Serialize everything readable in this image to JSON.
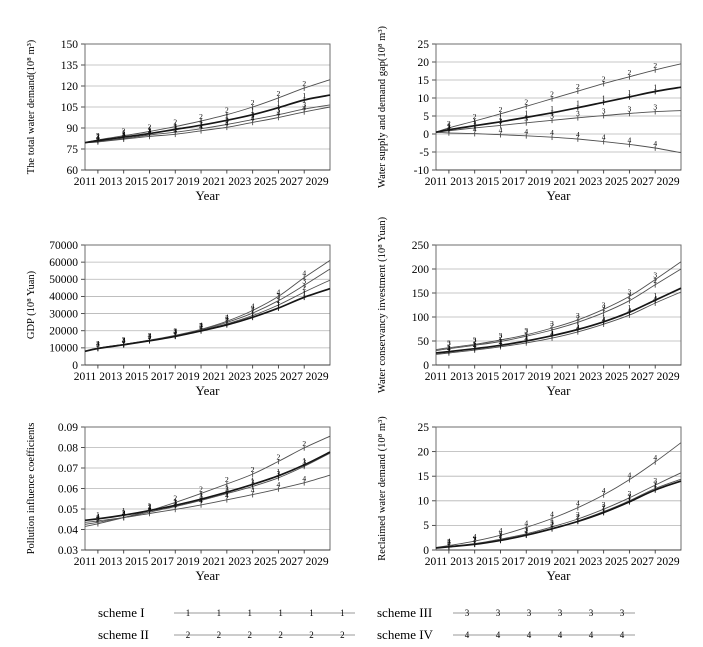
{
  "page": {
    "background": "#ffffff"
  },
  "colors": {
    "line": "#4f4f4f",
    "line_bold": "#161616",
    "grid": "#b4b4b4",
    "axis": "#6e6e6e",
    "axis_dark": "#3c3c3c",
    "marker_text": "#1d1d1d",
    "legend_line": "#9a9a9a"
  },
  "legend": {
    "items": [
      {
        "label": "scheme I",
        "marker": "1"
      },
      {
        "label": "scheme II",
        "marker": "2"
      },
      {
        "label": "scheme III",
        "marker": "3"
      },
      {
        "label": "scheme IV",
        "marker": "4"
      }
    ]
  },
  "chart_data": [
    {
      "id": "total-water-demand",
      "type": "line",
      "title": "",
      "xlabel": "Year",
      "ylabel": "The total water demand(10⁸ m³)",
      "xlim": [
        2011,
        2030
      ],
      "ylim": [
        60,
        150
      ],
      "ytick_step": 15,
      "ydecimals": 0,
      "grid": true,
      "xtick_labels": [
        "2011",
        "2013",
        "2015",
        "2017",
        "2019",
        "2021",
        "2023",
        "2025",
        "2027",
        "2029"
      ],
      "x": [
        2011,
        2012,
        2014,
        2016,
        2018,
        2020,
        2022,
        2024,
        2026,
        2028,
        2030
      ],
      "series": [
        {
          "name": "scheme I",
          "marker": "1",
          "bold": true,
          "values": [
            79.5,
            81,
            83.5,
            86,
            89,
            92,
            95.5,
            99.5,
            104.5,
            110,
            113.5
          ]
        },
        {
          "name": "scheme II",
          "marker": "2",
          "bold": false,
          "values": [
            79.5,
            81.5,
            84.5,
            87.5,
            91,
            95,
            99.5,
            105,
            111.5,
            118.5,
            124.5
          ]
        },
        {
          "name": "scheme III",
          "marker": "3",
          "bold": false,
          "values": [
            79.5,
            80.5,
            82.5,
            85,
            87,
            89.5,
            92.5,
            96,
            99.5,
            103.5,
            106.5
          ]
        },
        {
          "name": "scheme IV",
          "marker": "4",
          "bold": false,
          "values": [
            79.5,
            80,
            82,
            84,
            85.5,
            88,
            90.5,
            94,
            97.5,
            101.5,
            105
          ]
        }
      ]
    },
    {
      "id": "water-supply-demand-gap",
      "type": "line",
      "title": "",
      "xlabel": "Year",
      "ylabel": "Water supply and demand gap(10⁸ m³)",
      "xlim": [
        2011,
        2030
      ],
      "ylim": [
        -10,
        25
      ],
      "ytick_step": 5,
      "ydecimals": 0,
      "grid": true,
      "xtick_labels": [
        "2011",
        "2013",
        "2015",
        "2017",
        "2019",
        "2021",
        "2023",
        "2025",
        "2027",
        "2029"
      ],
      "x": [
        2011,
        2012,
        2014,
        2016,
        2018,
        2020,
        2022,
        2024,
        2026,
        2028,
        2030
      ],
      "series": [
        {
          "name": "scheme I",
          "marker": "1",
          "bold": true,
          "values": [
            0.5,
            1.2,
            2.3,
            3.4,
            4.6,
            5.9,
            7.3,
            8.8,
            10.3,
            11.8,
            13
          ]
        },
        {
          "name": "scheme II",
          "marker": "2",
          "bold": false,
          "values": [
            0.5,
            1.7,
            3.6,
            5.6,
            7.7,
            9.8,
            11.9,
            14,
            15.9,
            17.8,
            19.5
          ]
        },
        {
          "name": "scheme III",
          "marker": "3",
          "bold": false,
          "values": [
            0.5,
            0.9,
            1.7,
            2.4,
            3.1,
            3.8,
            4.5,
            5.1,
            5.7,
            6.2,
            6.5
          ]
        },
        {
          "name": "scheme IV",
          "marker": "4",
          "bold": false,
          "values": [
            0.5,
            0.3,
            0.1,
            -0.2,
            -0.5,
            -0.9,
            -1.4,
            -2.1,
            -2.9,
            -3.9,
            -5.2
          ]
        }
      ]
    },
    {
      "id": "gdp",
      "type": "line",
      "title": "",
      "xlabel": "Year",
      "ylabel": "GDP (10⁸ Yuan)",
      "xlim": [
        2011,
        2030
      ],
      "ylim": [
        0,
        70000
      ],
      "ytick_step": 10000,
      "ydecimals": 0,
      "grid": true,
      "xtick_labels": [
        "2011",
        "2013",
        "2015",
        "2017",
        "2019",
        "2021",
        "2023",
        "2025",
        "2027",
        "2029"
      ],
      "x": [
        2011,
        2012,
        2014,
        2016,
        2018,
        2020,
        2022,
        2024,
        2026,
        2028,
        2030
      ],
      "series": [
        {
          "name": "scheme I",
          "marker": "1",
          "bold": true,
          "values": [
            8000,
            9650,
            11800,
            14100,
            16700,
            19900,
            23400,
            27800,
            33200,
            39500,
            44500
          ]
        },
        {
          "name": "scheme II",
          "marker": "2",
          "bold": false,
          "values": [
            8000,
            9700,
            11900,
            14200,
            16900,
            20200,
            24000,
            28800,
            35000,
            42500,
            49500
          ]
        },
        {
          "name": "scheme III",
          "marker": "3",
          "bold": false,
          "values": [
            8000,
            9750,
            12000,
            14300,
            17100,
            20500,
            24800,
            30300,
            37500,
            46500,
            56000
          ]
        },
        {
          "name": "scheme IV",
          "marker": "4",
          "bold": false,
          "values": [
            8000,
            9800,
            12100,
            14500,
            17300,
            20800,
            25500,
            31800,
            40000,
            51000,
            61000
          ]
        }
      ]
    },
    {
      "id": "water-conservancy-investment",
      "type": "line",
      "title": "",
      "xlabel": "Year",
      "ylabel": "Water conservancy investment (10⁸ Yuan)",
      "xlim": [
        2011,
        2030
      ],
      "ylim": [
        0,
        250
      ],
      "ytick_step": 50,
      "ydecimals": 0,
      "grid": true,
      "xtick_labels": [
        "2011",
        "2013",
        "2015",
        "2017",
        "2019",
        "2021",
        "2023",
        "2025",
        "2027",
        "2029"
      ],
      "x": [
        2011,
        2012,
        2014,
        2016,
        2018,
        2020,
        2022,
        2024,
        2026,
        2028,
        2030
      ],
      "series": [
        {
          "name": "scheme I",
          "marker": "1",
          "bold": true,
          "values": [
            25,
            28,
            34,
            41,
            50,
            61,
            74,
            90,
            110,
            135,
            160
          ]
        },
        {
          "name": "scheme II",
          "marker": "2",
          "bold": false,
          "values": [
            30,
            34,
            41,
            49,
            60,
            73,
            89,
            109,
            134,
            167,
            200
          ]
        },
        {
          "name": "scheme III",
          "marker": "3",
          "bold": false,
          "values": [
            32,
            36,
            43,
            52,
            63,
            77,
            94,
            116,
            143,
            178,
            215
          ]
        },
        {
          "name": "scheme IV",
          "marker": "4",
          "bold": false,
          "values": [
            22,
            25,
            31,
            38,
            46,
            56,
            69,
            85,
            104,
            129,
            152
          ]
        }
      ]
    },
    {
      "id": "pollution-influence-coefficients",
      "type": "line",
      "title": "",
      "xlabel": "Year",
      "ylabel": "Pollution influence coefficients",
      "xlim": [
        2011,
        2030
      ],
      "ylim": [
        0.03,
        0.09
      ],
      "ytick_step": 0.01,
      "ydecimals": 2,
      "grid": true,
      "xtick_labels": [
        "2011",
        "2013",
        "2015",
        "2017",
        "2019",
        "2021",
        "2023",
        "2025",
        "2027",
        "2029"
      ],
      "x": [
        2011,
        2012,
        2014,
        2016,
        2018,
        2020,
        2022,
        2024,
        2026,
        2028,
        2030
      ],
      "series": [
        {
          "name": "scheme I",
          "marker": "1",
          "bold": true,
          "values": [
            0.0445,
            0.0452,
            0.047,
            0.0492,
            0.0518,
            0.0548,
            0.0582,
            0.062,
            0.0662,
            0.0715,
            0.0778
          ]
        },
        {
          "name": "scheme II",
          "marker": "2",
          "bold": false,
          "values": [
            0.0415,
            0.0428,
            0.0458,
            0.0492,
            0.0532,
            0.0576,
            0.0622,
            0.067,
            0.0732,
            0.0798,
            0.0855
          ]
        },
        {
          "name": "scheme III",
          "marker": "3",
          "bold": false,
          "values": [
            0.0425,
            0.0435,
            0.0458,
            0.0485,
            0.0512,
            0.0542,
            0.0575,
            0.061,
            0.0652,
            0.0708,
            0.0772
          ]
        },
        {
          "name": "scheme IV",
          "marker": "4",
          "bold": false,
          "values": [
            0.0435,
            0.0442,
            0.0458,
            0.0478,
            0.0498,
            0.052,
            0.0545,
            0.057,
            0.0598,
            0.0628,
            0.0665
          ]
        }
      ]
    },
    {
      "id": "reclaimed-water-demand",
      "type": "line",
      "title": "",
      "xlabel": "Year",
      "ylabel": "Reclaimed water demand (10⁸ m³)",
      "xlim": [
        2011,
        2030
      ],
      "ylim": [
        0,
        25
      ],
      "ytick_step": 5,
      "ydecimals": 0,
      "grid": true,
      "xtick_labels": [
        "2011",
        "2013",
        "2015",
        "2017",
        "2019",
        "2021",
        "2023",
        "2025",
        "2027",
        "2029"
      ],
      "x": [
        2011,
        2012,
        2014,
        2016,
        2018,
        2020,
        2022,
        2024,
        2026,
        2028,
        2030
      ],
      "series": [
        {
          "name": "scheme I",
          "marker": "1",
          "bold": true,
          "values": [
            0.4,
            0.65,
            1.15,
            1.95,
            3.0,
            4.3,
            5.8,
            7.6,
            9.8,
            12.2,
            14.0
          ]
        },
        {
          "name": "scheme II",
          "marker": "2",
          "bold": false,
          "values": [
            0.4,
            0.7,
            1.2,
            2.0,
            3.1,
            4.4,
            5.9,
            7.8,
            10.0,
            12.5,
            14.4
          ]
        },
        {
          "name": "scheme III",
          "marker": "3",
          "bold": false,
          "values": [
            0.4,
            0.7,
            1.3,
            2.2,
            3.3,
            4.7,
            6.3,
            8.3,
            10.6,
            13.2,
            15.7
          ]
        },
        {
          "name": "scheme IV",
          "marker": "4",
          "bold": false,
          "values": [
            0.5,
            0.9,
            1.8,
            3.0,
            4.6,
            6.4,
            8.6,
            11.2,
            14.3,
            17.9,
            21.8
          ]
        }
      ]
    }
  ]
}
